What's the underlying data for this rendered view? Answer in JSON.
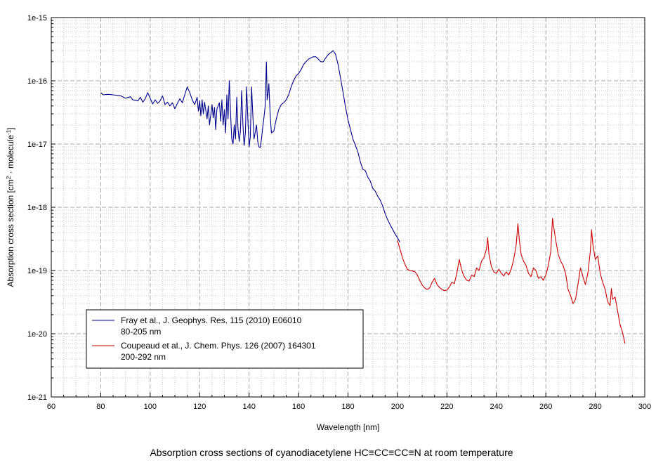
{
  "caption": "Absorption cross sections of cyanodiacetylene HC≡CC≡CC≡N at room temperature",
  "chart_data": {
    "type": "line",
    "xlabel": "Wavelength [nm]",
    "ylabel": {
      "base": "Absorption cross section [cm",
      "sup1": "2",
      "mid": " · molecule",
      "sup2": "-1",
      "end": "]"
    },
    "xlim": [
      60,
      300
    ],
    "ylim": [
      1e-21,
      1e-15
    ],
    "yscale": "log",
    "xticks": [
      "60",
      "80",
      "100",
      "120",
      "140",
      "160",
      "180",
      "200",
      "220",
      "240",
      "260",
      "280",
      "300"
    ],
    "yticks": [
      "1e-21",
      "1e-20",
      "1e-19",
      "1e-18",
      "1e-17",
      "1e-16",
      "1e-15"
    ],
    "grid": true,
    "legend_position": "bottom-left",
    "series": [
      {
        "name": "Fray et al., J. Geophys. Res. 115 (2010) E06010",
        "name2": "80-205 nm",
        "color": "#00008b",
        "points": [
          [
            80,
            6.5e-17
          ],
          [
            81,
            6e-17
          ],
          [
            83,
            6.1e-17
          ],
          [
            85,
            6e-17
          ],
          [
            88,
            5.8e-17
          ],
          [
            90,
            5.3e-17
          ],
          [
            92,
            5.6e-17
          ],
          [
            93,
            5e-17
          ],
          [
            95,
            4.8e-17
          ],
          [
            96,
            5.5e-17
          ],
          [
            97,
            4.6e-17
          ],
          [
            98,
            5.2e-17
          ],
          [
            99,
            6.5e-17
          ],
          [
            100,
            5.3e-17
          ],
          [
            101,
            4.3e-17
          ],
          [
            102,
            5e-17
          ],
          [
            103,
            4.4e-17
          ],
          [
            104,
            4.8e-17
          ],
          [
            105,
            5.8e-17
          ],
          [
            106,
            4.2e-17
          ],
          [
            107,
            4.6e-17
          ],
          [
            108,
            4e-17
          ],
          [
            109,
            4.5e-17
          ],
          [
            110,
            3.6e-17
          ],
          [
            111,
            4.4e-17
          ],
          [
            112,
            5.2e-17
          ],
          [
            113,
            4.5e-17
          ],
          [
            114,
            6e-17
          ],
          [
            115,
            8e-17
          ],
          [
            116,
            6.5e-17
          ],
          [
            117,
            5e-17
          ],
          [
            118,
            4.2e-17
          ],
          [
            119,
            5.5e-17
          ],
          [
            119.5,
            3.3e-17
          ],
          [
            120,
            4.8e-17
          ],
          [
            120.5,
            2.8e-17
          ],
          [
            121,
            5e-17
          ],
          [
            121.5,
            3e-17
          ],
          [
            122,
            4.6e-17
          ],
          [
            123,
            2.5e-17
          ],
          [
            123.5,
            4e-17
          ],
          [
            124,
            2e-17
          ],
          [
            125,
            4.2e-17
          ],
          [
            125.5,
            2.6e-17
          ],
          [
            126,
            3.8e-17
          ],
          [
            126.5,
            1.7e-17
          ],
          [
            127,
            3.6e-17
          ],
          [
            128,
            4.5e-17
          ],
          [
            128.5,
            2.3e-17
          ],
          [
            129,
            5e-17
          ],
          [
            129.5,
            2e-17
          ],
          [
            130,
            3.5e-17
          ],
          [
            130.5,
            1.5e-17
          ],
          [
            131,
            6e-17
          ],
          [
            131.5,
            2.5e-17
          ],
          [
            132,
            1e-16
          ],
          [
            132.5,
            3e-17
          ],
          [
            133,
            1.2e-17
          ],
          [
            133.5,
            1e-17
          ],
          [
            134,
            2e-17
          ],
          [
            134.5,
            1.2e-17
          ],
          [
            135,
            5.5e-17
          ],
          [
            135.5,
            1.8e-17
          ],
          [
            136,
            1.1e-17
          ],
          [
            136.5,
            1.6e-17
          ],
          [
            137,
            7e-17
          ],
          [
            137.5,
            2e-17
          ],
          [
            138,
            9.5e-18
          ],
          [
            138.5,
            1.5e-17
          ],
          [
            139,
            8e-17
          ],
          [
            139.5,
            2.5e-17
          ],
          [
            140,
            9e-18
          ],
          [
            140.5,
            1.3e-17
          ],
          [
            141,
            8e-17
          ],
          [
            141.5,
            3e-17
          ],
          [
            142,
            1.2e-17
          ],
          [
            143,
            2e-17
          ],
          [
            143.5,
            1.1e-17
          ],
          [
            144,
            9e-18
          ],
          [
            144.5,
            8.8e-18
          ],
          [
            145,
            1.2e-17
          ],
          [
            145.5,
            1.8e-17
          ],
          [
            146,
            2.6e-17
          ],
          [
            146.5,
            4e-17
          ],
          [
            147,
            2e-16
          ],
          [
            147.3,
            5e-17
          ],
          [
            147.6,
            6e-17
          ],
          [
            148,
            9e-17
          ],
          [
            148.5,
            3e-17
          ],
          [
            149,
            1.5e-17
          ],
          [
            150,
            1.6e-17
          ],
          [
            151,
            2.5e-17
          ],
          [
            152,
            3.5e-17
          ],
          [
            153,
            4.2e-17
          ],
          [
            154,
            4.5e-17
          ],
          [
            155,
            5e-17
          ],
          [
            156,
            6e-17
          ],
          [
            157,
            8e-17
          ],
          [
            158,
            1e-16
          ],
          [
            159,
            1.2e-16
          ],
          [
            160,
            1.3e-16
          ],
          [
            161,
            1.5e-16
          ],
          [
            162,
            1.8e-16
          ],
          [
            163,
            2e-16
          ],
          [
            164,
            2.2e-16
          ],
          [
            165,
            2.3e-16
          ],
          [
            166,
            2.4e-16
          ],
          [
            167,
            2.4e-16
          ],
          [
            168,
            2.2e-16
          ],
          [
            169,
            2e-16
          ],
          [
            170,
            2e-16
          ],
          [
            171,
            2.3e-16
          ],
          [
            172,
            2.6e-16
          ],
          [
            173,
            2.8e-16
          ],
          [
            174,
            3e-16
          ],
          [
            175,
            2.6e-16
          ],
          [
            176,
            1.8e-16
          ],
          [
            177,
            1.1e-16
          ],
          [
            178,
            6.5e-17
          ],
          [
            179,
            3.8e-17
          ],
          [
            180,
            2.4e-17
          ],
          [
            181,
            1.7e-17
          ],
          [
            182,
            1.2e-17
          ],
          [
            183,
            9.5e-18
          ],
          [
            184,
            7.5e-18
          ],
          [
            185,
            5.2e-18
          ],
          [
            186,
            4e-18
          ],
          [
            187,
            3.8e-18
          ],
          [
            188,
            3e-18
          ],
          [
            189,
            2.6e-18
          ],
          [
            190,
            2e-18
          ],
          [
            191,
            1.8e-18
          ],
          [
            192,
            1.5e-18
          ],
          [
            193,
            1.3e-18
          ],
          [
            194,
            1.05e-18
          ],
          [
            195,
            8e-19
          ],
          [
            196,
            6.4e-19
          ],
          [
            197,
            5.3e-19
          ],
          [
            198,
            4.5e-19
          ],
          [
            199,
            3.8e-19
          ],
          [
            200,
            3.3e-19
          ],
          [
            201,
            2.8e-19
          ]
        ]
      },
      {
        "name": "Coupeaud et al., J. Chem. Phys. 126 (2007) 164301",
        "name2": "200-292 nm",
        "color": "#cc0000",
        "points": [
          [
            200,
            3e-19
          ],
          [
            201,
            2.2e-19
          ],
          [
            202,
            1.6e-19
          ],
          [
            203,
            1.25e-19
          ],
          [
            204,
            1.05e-19
          ],
          [
            205,
            1e-19
          ],
          [
            206,
            9.8e-20
          ],
          [
            207,
            9.6e-20
          ],
          [
            208,
            8.5e-20
          ],
          [
            209,
            7e-20
          ],
          [
            210,
            5.9e-20
          ],
          [
            211,
            5.3e-20
          ],
          [
            212,
            5e-20
          ],
          [
            213,
            5.3e-20
          ],
          [
            214,
            6.5e-20
          ],
          [
            215,
            7.5e-20
          ],
          [
            216,
            6e-20
          ],
          [
            217,
            5.4e-20
          ],
          [
            218,
            5e-20
          ],
          [
            219,
            4.8e-20
          ],
          [
            220,
            4.9e-20
          ],
          [
            221,
            5.5e-20
          ],
          [
            222,
            6.5e-20
          ],
          [
            223,
            6.2e-20
          ],
          [
            224,
            9e-20
          ],
          [
            225,
            1.5e-19
          ],
          [
            226,
            1e-19
          ],
          [
            227,
            8e-20
          ],
          [
            228,
            7e-20
          ],
          [
            229,
            6.8e-20
          ],
          [
            230,
            8.5e-20
          ],
          [
            231,
            8e-20
          ],
          [
            232,
            1.1e-19
          ],
          [
            233,
            1e-19
          ],
          [
            234,
            1.4e-19
          ],
          [
            235,
            1.6e-19
          ],
          [
            236,
            2.2e-19
          ],
          [
            236.5,
            3.3e-19
          ],
          [
            237,
            1.8e-19
          ],
          [
            238,
            1.15e-19
          ],
          [
            239,
            9.5e-20
          ],
          [
            240,
            9e-20
          ],
          [
            241,
            1.05e-19
          ],
          [
            242,
            9e-20
          ],
          [
            243,
            8.2e-20
          ],
          [
            244,
            9.5e-20
          ],
          [
            245,
            8.5e-20
          ],
          [
            246,
            1.05e-19
          ],
          [
            247,
            1.5e-19
          ],
          [
            248,
            2.5e-19
          ],
          [
            248.7,
            5.5e-19
          ],
          [
            249.3,
            3e-19
          ],
          [
            250,
            1.8e-19
          ],
          [
            251,
            1.4e-19
          ],
          [
            252,
            1.2e-19
          ],
          [
            253,
            9e-20
          ],
          [
            254,
            8e-20
          ],
          [
            255,
            1.1e-19
          ],
          [
            256,
            1e-19
          ],
          [
            257,
            7.5e-20
          ],
          [
            258,
            8e-20
          ],
          [
            259,
            7e-20
          ],
          [
            260,
            8.5e-20
          ],
          [
            261,
            1.2e-19
          ],
          [
            262,
            2e-19
          ],
          [
            262.7,
            6.7e-19
          ],
          [
            263.3,
            4.5e-19
          ],
          [
            264,
            3e-19
          ],
          [
            265,
            1.8e-19
          ],
          [
            266,
            1.4e-19
          ],
          [
            267,
            1.2e-19
          ],
          [
            268,
            9e-20
          ],
          [
            269,
            5e-20
          ],
          [
            270,
            4e-20
          ],
          [
            271,
            3e-20
          ],
          [
            272,
            3.5e-20
          ],
          [
            273,
            6e-20
          ],
          [
            274,
            1.1e-19
          ],
          [
            275,
            8e-20
          ],
          [
            276,
            6e-20
          ],
          [
            277,
            9e-20
          ],
          [
            278,
            2e-19
          ],
          [
            278.5,
            4.4e-19
          ],
          [
            279,
            2.6e-19
          ],
          [
            280,
            1.5e-19
          ],
          [
            281,
            1.7e-19
          ],
          [
            282,
            9e-20
          ],
          [
            283,
            6.5e-20
          ],
          [
            284,
            5e-20
          ],
          [
            285,
            3.2e-20
          ],
          [
            286,
            2.8e-20
          ],
          [
            286.5,
            5.2e-20
          ],
          [
            287,
            3.5e-20
          ],
          [
            288,
            3.8e-20
          ],
          [
            289,
            2.3e-20
          ],
          [
            290,
            1.4e-20
          ],
          [
            291,
            1.05e-20
          ],
          [
            292,
            7e-21
          ]
        ]
      }
    ]
  }
}
